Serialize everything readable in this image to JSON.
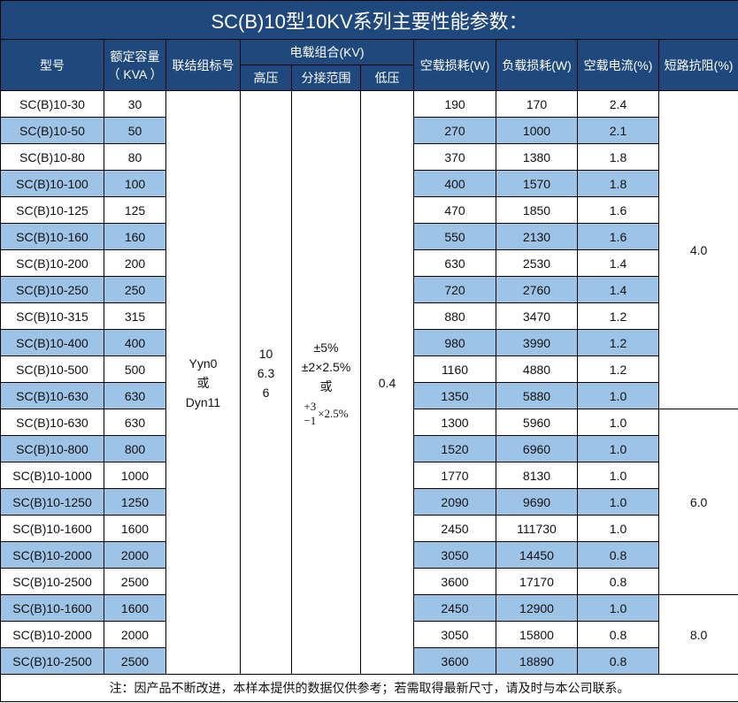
{
  "title": "SC(B)10型10KV系列主要性能参数：",
  "headers": {
    "model": "型号",
    "capacity": "额定容量",
    "capacity_unit": "（ KVA ）",
    "connection": "联结组标号",
    "voltage_group": "电载组合(KV)",
    "hv": "高压",
    "tap": "分接范围",
    "lv": "低压",
    "no_load_loss": "空载损耗(W)",
    "load_loss": "负载损耗(W)",
    "no_load_current": "空载电流(%)",
    "impedance": "短路抗阻(%)"
  },
  "merged": {
    "connection": [
      "Yyn0",
      "或",
      "Dyn11"
    ],
    "hv": [
      "10",
      "6.3",
      "6"
    ],
    "tap": [
      "±5%",
      "±2×2.5%",
      "或"
    ],
    "tap_sup": "+3",
    "tap_sub": "−1",
    "tap_tail": "×2.5%",
    "lv": "0.4"
  },
  "rows": [
    [
      "SC(B)10-30",
      "30",
      "190",
      "170",
      "2.4"
    ],
    [
      "SC(B)10-50",
      "50",
      "270",
      "1000",
      "2.1"
    ],
    [
      "SC(B)10-80",
      "80",
      "370",
      "1380",
      "1.8"
    ],
    [
      "SC(B)10-100",
      "100",
      "400",
      "1570",
      "1.8"
    ],
    [
      "SC(B)10-125",
      "125",
      "470",
      "1850",
      "1.6"
    ],
    [
      "SC(B)10-160",
      "160",
      "550",
      "2130",
      "1.6"
    ],
    [
      "SC(B)10-200",
      "200",
      "630",
      "2530",
      "1.4"
    ],
    [
      "SC(B)10-250",
      "250",
      "720",
      "2760",
      "1.4"
    ],
    [
      "SC(B)10-315",
      "315",
      "880",
      "3470",
      "1.2"
    ],
    [
      "SC(B)10-400",
      "400",
      "980",
      "3990",
      "1.2"
    ],
    [
      "SC(B)10-500",
      "500",
      "1160",
      "4880",
      "1.2"
    ],
    [
      "SC(B)10-630",
      "630",
      "1350",
      "5880",
      "1.0"
    ],
    [
      "SC(B)10-630",
      "630",
      "1300",
      "5960",
      "1.0"
    ],
    [
      "SC(B)10-800",
      "800",
      "1520",
      "6960",
      "1.0"
    ],
    [
      "SC(B)10-1000",
      "1000",
      "1770",
      "8130",
      "1.0"
    ],
    [
      "SC(B)10-1250",
      "1250",
      "2090",
      "9690",
      "1.0"
    ],
    [
      "SC(B)10-1600",
      "1600",
      "2450",
      "111730",
      "1.0"
    ],
    [
      "SC(B)10-2000",
      "2000",
      "3050",
      "14450",
      "0.8"
    ],
    [
      "SC(B)10-2500",
      "2500",
      "3600",
      "17170",
      "0.8"
    ],
    [
      "SC(B)10-1600",
      "1600",
      "2450",
      "12900",
      "1.0"
    ],
    [
      "SC(B)10-2000",
      "2000",
      "3050",
      "15800",
      "0.8"
    ],
    [
      "SC(B)10-2500",
      "2500",
      "3600",
      "18890",
      "0.8"
    ]
  ],
  "impedance_groups": [
    {
      "value": "4.0",
      "span": 12
    },
    {
      "value": "6.0",
      "span": 7
    },
    {
      "value": "8.0",
      "span": 3
    }
  ],
  "footnote": "注：因产品不断改进，本样本提供的数据仅供参考；若需取得最新尺寸，请及时与本公司联系。",
  "colors": {
    "header": "#1f497d",
    "stripe": "#9dc3e6"
  }
}
